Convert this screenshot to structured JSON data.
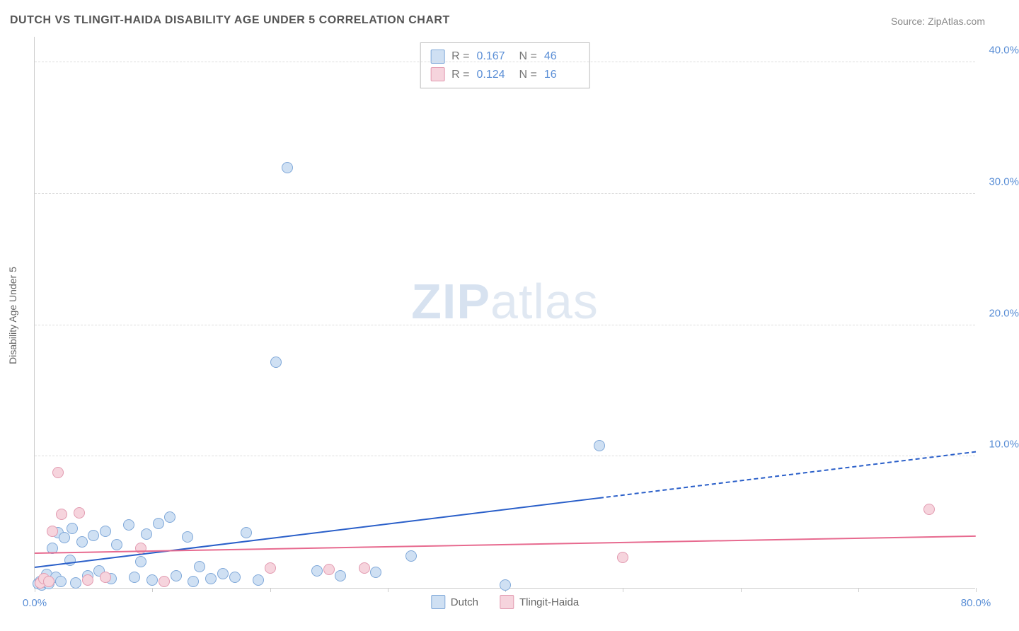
{
  "title": "DUTCH VS TLINGIT-HAIDA DISABILITY AGE UNDER 5 CORRELATION CHART",
  "source_prefix": "Source: ",
  "source_name": "ZipAtlas.com",
  "ylabel": "Disability Age Under 5",
  "watermark_zip": "ZIP",
  "watermark_atlas": "atlas",
  "chart": {
    "type": "scatter",
    "xlim": [
      0,
      80
    ],
    "ylim": [
      0,
      42
    ],
    "x_ticks": [
      0,
      10,
      20,
      30,
      40,
      50,
      60,
      70,
      80
    ],
    "x_tick_labels": {
      "0": "0.0%",
      "80": "80.0%"
    },
    "y_gridlines": [
      10,
      20,
      30,
      40
    ],
    "y_tick_labels": {
      "10": "10.0%",
      "20": "20.0%",
      "30": "30.0%",
      "40": "40.0%"
    },
    "background_color": "#ffffff",
    "grid_color": "#dddddd",
    "axis_color": "#cccccc",
    "tick_label_color": "#5b8fd6",
    "point_radius": 8,
    "series": [
      {
        "name": "Dutch",
        "fill": "#cfe0f3",
        "stroke": "#7fa8d9",
        "line_color": "#2a5fc9",
        "line_width": 2.5,
        "r_label": "R =",
        "r_value": "0.167",
        "n_label": "N =",
        "n_value": "46",
        "trend": {
          "x0": 0,
          "y0": 1.5,
          "x1": 80,
          "y1": 10.3,
          "solid_until_x": 48
        },
        "points": [
          [
            0.3,
            0.3
          ],
          [
            0.5,
            0.5
          ],
          [
            0.6,
            0.2
          ],
          [
            0.8,
            0.6
          ],
          [
            1.0,
            0.4
          ],
          [
            1.0,
            1.0
          ],
          [
            1.2,
            0.3
          ],
          [
            1.5,
            3.0
          ],
          [
            1.8,
            0.8
          ],
          [
            2.0,
            4.2
          ],
          [
            2.2,
            0.5
          ],
          [
            2.5,
            3.8
          ],
          [
            3.0,
            2.1
          ],
          [
            3.2,
            4.5
          ],
          [
            3.5,
            0.4
          ],
          [
            4.0,
            3.5
          ],
          [
            4.5,
            0.9
          ],
          [
            5.0,
            4.0
          ],
          [
            5.5,
            1.3
          ],
          [
            6.0,
            4.3
          ],
          [
            6.5,
            0.7
          ],
          [
            7.0,
            3.3
          ],
          [
            8.0,
            4.8
          ],
          [
            8.5,
            0.8
          ],
          [
            9.0,
            2.0
          ],
          [
            9.5,
            4.1
          ],
          [
            10.0,
            0.6
          ],
          [
            10.5,
            4.9
          ],
          [
            11.5,
            5.4
          ],
          [
            12.0,
            0.9
          ],
          [
            13.0,
            3.9
          ],
          [
            13.5,
            0.5
          ],
          [
            14.0,
            1.6
          ],
          [
            15.0,
            0.7
          ],
          [
            16.0,
            1.1
          ],
          [
            17.0,
            0.8
          ],
          [
            18.0,
            4.2
          ],
          [
            19.0,
            0.6
          ],
          [
            20.5,
            17.2
          ],
          [
            21.5,
            32.0
          ],
          [
            24.0,
            1.3
          ],
          [
            26.0,
            0.9
          ],
          [
            29.0,
            1.2
          ],
          [
            32.0,
            2.4
          ],
          [
            40.0,
            0.2
          ],
          [
            48.0,
            10.8
          ]
        ]
      },
      {
        "name": "Tlingit-Haida",
        "fill": "#f6d4dd",
        "stroke": "#e29ab0",
        "line_color": "#e76a8f",
        "line_width": 2.5,
        "r_label": "R =",
        "r_value": "0.124",
        "n_label": "N =",
        "n_value": "16",
        "trend": {
          "x0": 0,
          "y0": 2.6,
          "x1": 80,
          "y1": 3.9,
          "solid_until_x": 80
        },
        "points": [
          [
            0.5,
            0.4
          ],
          [
            0.8,
            0.7
          ],
          [
            1.2,
            0.5
          ],
          [
            1.5,
            4.3
          ],
          [
            2.0,
            8.8
          ],
          [
            2.3,
            5.6
          ],
          [
            3.8,
            5.7
          ],
          [
            4.5,
            0.6
          ],
          [
            6.0,
            0.8
          ],
          [
            9.0,
            3.0
          ],
          [
            11.0,
            0.5
          ],
          [
            20.0,
            1.5
          ],
          [
            25.0,
            1.4
          ],
          [
            28.0,
            1.5
          ],
          [
            50.0,
            2.3
          ],
          [
            76.0,
            6.0
          ]
        ]
      }
    ]
  }
}
